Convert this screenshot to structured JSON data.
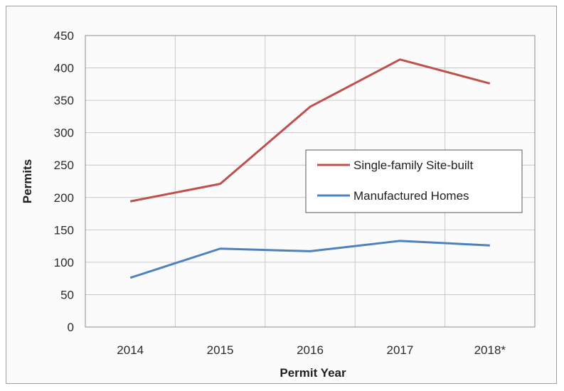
{
  "chart_data": {
    "type": "line",
    "title": "",
    "xlabel": "Permit Year",
    "ylabel": "Permits",
    "categories": [
      "2014",
      "2015",
      "2016",
      "2017",
      "2018*"
    ],
    "ylim": [
      0,
      450
    ],
    "yticks": [
      0,
      50,
      100,
      150,
      200,
      250,
      300,
      350,
      400,
      450
    ],
    "grid": true,
    "legend_position": "right-center",
    "series": [
      {
        "name": "Single-family Site-built",
        "color": "#c0504d",
        "values": [
          194,
          221,
          340,
          413,
          376
        ]
      },
      {
        "name": "Manufactured Homes",
        "color": "#4f81bd",
        "values": [
          76,
          121,
          117,
          133,
          126
        ]
      }
    ]
  }
}
